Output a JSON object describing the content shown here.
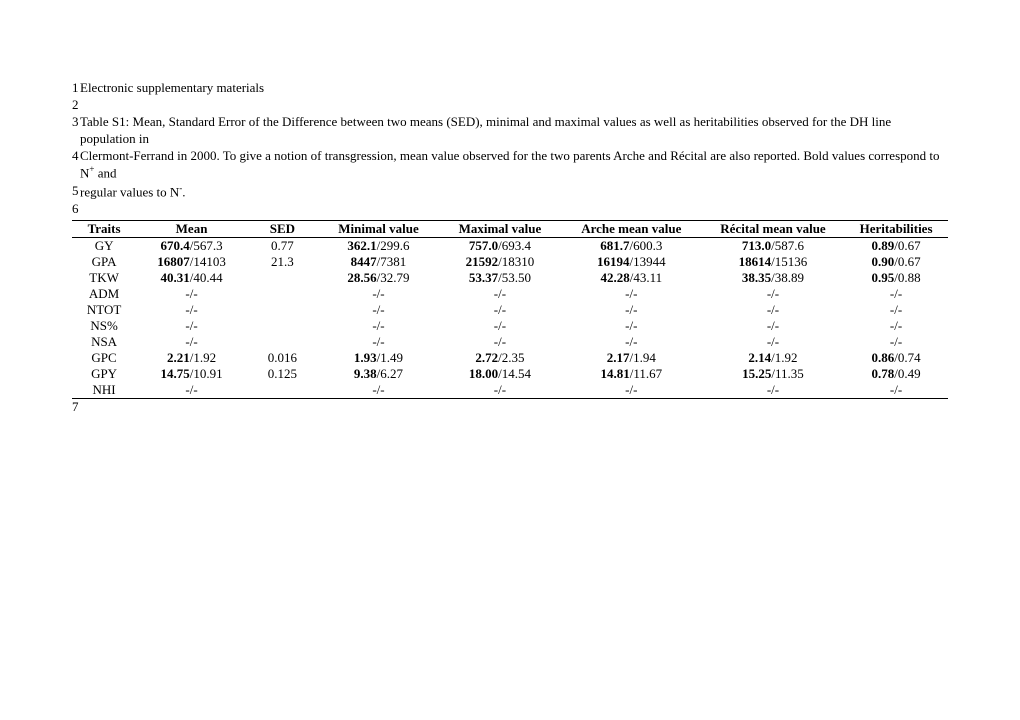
{
  "lines": {
    "l1": "1",
    "t1": "Electronic supplementary materials",
    "l2": "2",
    "l3": "3",
    "t3a": "Table S1: Mean, Standard Error of the Difference between two means (SED), minimal and maximal values as well as heritabilities observed for the DH line population in ",
    "l4": "4",
    "t4a": "Clermont-Ferrand in 2000. To give a notion of transgression, mean value observed for the two parents Arche and Récital are also reported. Bold values correspond to N",
    "t4sup": "+",
    "t4b": " and ",
    "l5": "5",
    "t5a": "regular values to N",
    "t5sup": "-",
    "t5b": ".",
    "l6": "6",
    "l7": "7"
  },
  "table": {
    "headers": [
      "Traits",
      "Mean",
      "SED",
      "Minimal value",
      "Maximal value",
      "Arche mean value",
      "Récital mean value",
      "Heritabilities"
    ],
    "rows": [
      {
        "trait": "GY",
        "mean_b": "670.4",
        "mean_r": "/567.3",
        "sed": "0.77",
        "min_b": "362.1",
        "min_r": "/299.6",
        "max_b": "757.0",
        "max_r": "/693.4",
        "arche_b": "681.7",
        "arche_r": "/600.3",
        "rec_b": "713.0",
        "rec_r": "/587.6",
        "her_b": "0.89",
        "her_r": "/0.67"
      },
      {
        "trait": "GPA",
        "mean_b": "16807",
        "mean_r": "/14103",
        "sed": "21.3",
        "min_b": "8447",
        "min_r": "/7381",
        "max_b": "21592",
        "max_r": "/18310",
        "arche_b": "16194",
        "arche_r": "/13944",
        "rec_b": "18614",
        "rec_r": "/15136",
        "her_b": "0.90",
        "her_r": "/0.67"
      },
      {
        "trait": "TKW",
        "mean_b": "40.31",
        "mean_r": "/40.44",
        "sed": "",
        "min_b": "28.56",
        "min_r": "/32.79",
        "max_b": "53.37",
        "max_r": "/53.50",
        "arche_b": "42.28",
        "arche_r": "/43.11",
        "rec_b": "38.35",
        "rec_r": "/38.89",
        "her_b": "0.95",
        "her_r": "/0.88"
      },
      {
        "trait": "ADM",
        "mean_b": "",
        "mean_r": "-/-",
        "sed": "",
        "min_b": "",
        "min_r": "-/-",
        "max_b": "",
        "max_r": "-/-",
        "arche_b": "",
        "arche_r": "-/-",
        "rec_b": "",
        "rec_r": "-/-",
        "her_b": "",
        "her_r": "-/-"
      },
      {
        "trait": "NTOT",
        "mean_b": "",
        "mean_r": "-/-",
        "sed": "",
        "min_b": "",
        "min_r": "-/-",
        "max_b": "",
        "max_r": "-/-",
        "arche_b": "",
        "arche_r": "-/-",
        "rec_b": "",
        "rec_r": "-/-",
        "her_b": "",
        "her_r": "-/-"
      },
      {
        "trait": "NS%",
        "mean_b": "",
        "mean_r": "-/-",
        "sed": "",
        "min_b": "",
        "min_r": "-/-",
        "max_b": "",
        "max_r": "-/-",
        "arche_b": "",
        "arche_r": "-/-",
        "rec_b": "",
        "rec_r": "-/-",
        "her_b": "",
        "her_r": "-/-"
      },
      {
        "trait": "NSA",
        "mean_b": "",
        "mean_r": "-/-",
        "sed": "",
        "min_b": "",
        "min_r": "-/-",
        "max_b": "",
        "max_r": "-/-",
        "arche_b": "",
        "arche_r": "-/-",
        "rec_b": "",
        "rec_r": "-/-",
        "her_b": "",
        "her_r": "-/-"
      },
      {
        "trait": "GPC",
        "mean_b": "2.21",
        "mean_r": "/1.92",
        "sed": "0.016",
        "min_b": "1.93",
        "min_r": "/1.49",
        "max_b": "2.72",
        "max_r": "/2.35",
        "arche_b": "2.17",
        "arche_r": "/1.94",
        "rec_b": "2.14",
        "rec_r": "/1.92",
        "her_b": "0.86",
        "her_r": "/0.74"
      },
      {
        "trait": "GPY",
        "mean_b": "14.75",
        "mean_r": "/10.91",
        "sed": "0.125",
        "min_b": "9.38",
        "min_r": "/6.27",
        "max_b": "18.00",
        "max_r": "/14.54",
        "arche_b": "14.81",
        "arche_r": "/11.67",
        "rec_b": "15.25",
        "rec_r": "/11.35",
        "her_b": "0.78",
        "her_r": "/0.49"
      },
      {
        "trait": "NHI",
        "mean_b": "",
        "mean_r": "-/-",
        "sed": "",
        "min_b": "",
        "min_r": "-/-",
        "max_b": "",
        "max_r": "-/-",
        "arche_b": "",
        "arche_r": "-/-",
        "rec_b": "",
        "rec_r": "-/-",
        "her_b": "",
        "her_r": "-/-"
      }
    ],
    "col_widths": [
      "70px",
      "120px",
      "80px",
      "130px",
      "130px",
      "150px",
      "150px",
      "110px"
    ]
  }
}
